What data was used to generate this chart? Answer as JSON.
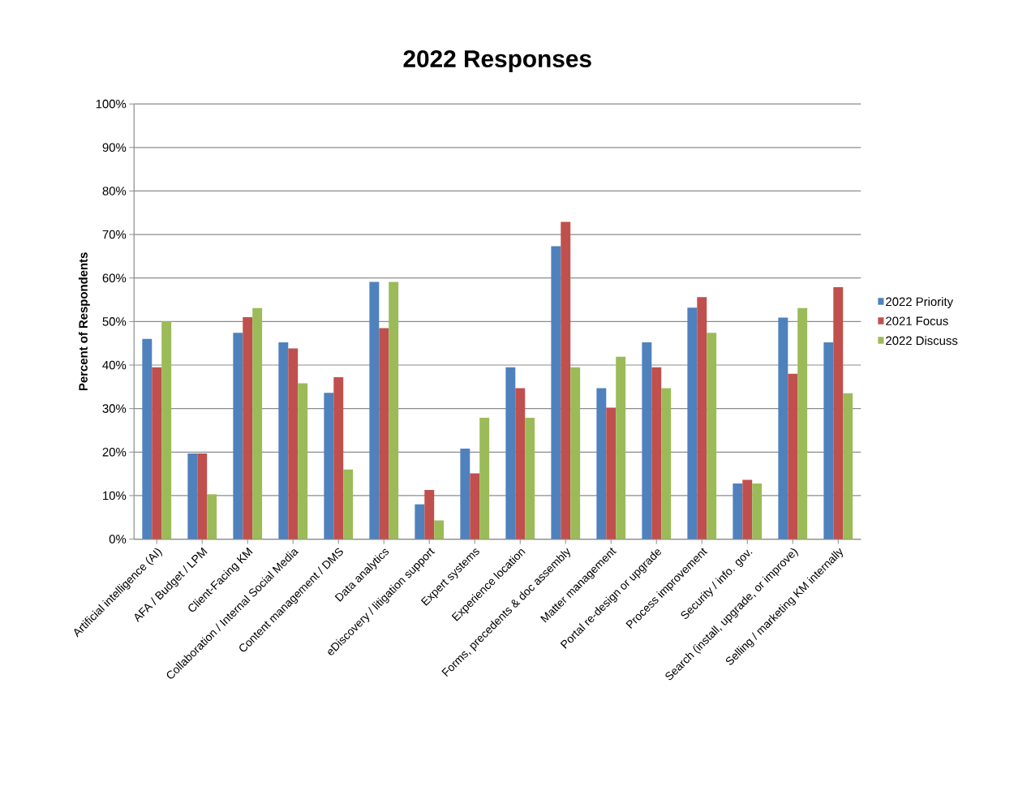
{
  "chart_data": {
    "type": "bar",
    "title": "2022 Responses",
    "ylabel": "Percent of Respondents",
    "categories": [
      "Artificial intelligence (AI)",
      "AFA / Budget / LPM",
      "Client-Facing KM",
      "Collaboration / Internal Social Media",
      "Content management / DMS",
      "Data analytics",
      "eDiscovery / litigation support",
      "Expert systems",
      "Experience location",
      "Forms, precedents & doc assembly",
      "Matter management",
      "Portal re-design or upgrade",
      "Process improvement",
      "Security / info. gov.",
      "Search (install, upgrade, or improve)",
      "Selling / marketing KM internally"
    ],
    "series": [
      {
        "name": "2022 Priority",
        "color": "#4f81bd",
        "values": [
          46,
          19.7,
          47.4,
          45.2,
          33.6,
          59.1,
          8,
          20.8,
          39.5,
          67.3,
          34.7,
          45.2,
          53.2,
          12.8,
          50.9,
          45.2
        ]
      },
      {
        "name": "2021 Focus",
        "color": "#c0504d",
        "values": [
          39.5,
          19.7,
          51,
          43.8,
          37.2,
          48.5,
          11.3,
          15.1,
          34.7,
          72.9,
          30.2,
          39.5,
          55.6,
          13.6,
          38,
          57.9
        ]
      },
      {
        "name": "2022 Discuss",
        "color": "#9bbb59",
        "values": [
          50,
          10.3,
          53.1,
          35.8,
          16,
          59.1,
          4.3,
          27.9,
          27.9,
          39.5,
          41.9,
          34.7,
          47.4,
          12.8,
          53.1,
          33.5
        ]
      }
    ],
    "ylim": [
      0,
      100
    ],
    "yticks": [
      {
        "value": 0,
        "label": "0%"
      },
      {
        "value": 10,
        "label": "10%"
      },
      {
        "value": 20,
        "label": "20%"
      },
      {
        "value": 30,
        "label": "30%"
      },
      {
        "value": 40,
        "label": "40%"
      },
      {
        "value": 50,
        "label": "50%"
      },
      {
        "value": 60,
        "label": "60%"
      },
      {
        "value": 70,
        "label": "70%"
      },
      {
        "value": 80,
        "label": "80%"
      },
      {
        "value": 90,
        "label": "90%"
      },
      {
        "value": 100,
        "label": "100%"
      }
    ],
    "grid": "y",
    "legend": "right"
  }
}
